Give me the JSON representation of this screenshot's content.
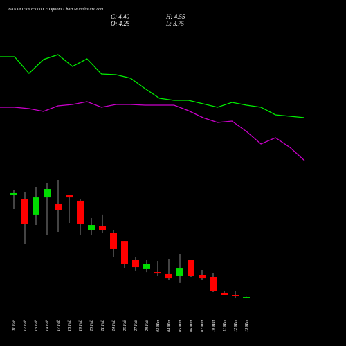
{
  "chart_data": {
    "type": "candlestick",
    "title": "BANKNIFTY 65000 CE Options Chart Munafasutra.com",
    "ohlc_labels": {
      "close": "C: 4.40",
      "open": "O: 4.25",
      "high": "H: 4.55",
      "low": "L: 3.75"
    },
    "categories": [
      "11 Feb",
      "12 Feb",
      "13 Feb",
      "14 Feb",
      "17 Feb",
      "18 Feb",
      "19 Feb",
      "20 Feb",
      "21 Feb",
      "24 Feb",
      "25 Feb",
      "27 Feb",
      "28 Feb",
      "03 Mar",
      "04 Mar",
      "05 Mar",
      "06 Mar",
      "07 Mar",
      "10 Mar",
      "11 Mar",
      "12 Mar",
      "13 Mar"
    ],
    "open": [
      86.1,
      82.8,
      70.6,
      84.4,
      78.9,
      86.1,
      81.7,
      57.8,
      61.1,
      56.1,
      49.4,
      34.4,
      26.7,
      24.4,
      22.8,
      21.1,
      34.4,
      21.7,
      20,
      7.8,
      6.1,
      4.25
    ],
    "high": [
      90,
      88.9,
      92.8,
      95.6,
      98.3,
      86.1,
      82.8,
      67.8,
      70.6,
      57.8,
      49.4,
      36.1,
      34.4,
      33.3,
      35,
      38.9,
      34.4,
      26.1,
      23.3,
      9.4,
      8.9,
      4.55
    ],
    "low": [
      75,
      47.2,
      62.2,
      53.9,
      56.7,
      63.9,
      53.9,
      53.9,
      56.1,
      36.1,
      27.8,
      25,
      24.4,
      21.1,
      17.8,
      15.6,
      20,
      17.8,
      8.3,
      5.6,
      3.3,
      3.75
    ],
    "close": [
      87.8,
      63.3,
      84.4,
      91.1,
      73.9,
      84.4,
      63.3,
      62.2,
      57.8,
      42.8,
      30.6,
      28.3,
      30.6,
      23.3,
      19.4,
      27.2,
      21.1,
      19.4,
      8.9,
      6.1,
      5,
      4.4
    ],
    "up_color": "#00dd00",
    "down_color": "#ff0000",
    "ylim": [
      0,
      100
    ],
    "y2lim": [
      0,
      100
    ],
    "series": [
      {
        "color": "#00ee00",
        "axis": "y2",
        "values": [
          83.6,
          83.6,
          78.8,
          82.8,
          84.2,
          80.8,
          83,
          78.6,
          78.4,
          77.4,
          74.4,
          71.6,
          71,
          71,
          70,
          69,
          70.4,
          69.6,
          69,
          66.8,
          66.4,
          66
        ]
      },
      {
        "color": "#cc00cc",
        "axis": "y2",
        "values": [
          69,
          69,
          68.6,
          67.8,
          69.4,
          69.8,
          70.6,
          69,
          69.8,
          69.8,
          69.6,
          69.6,
          69.6,
          68,
          66,
          64.6,
          65,
          62,
          58.4,
          60.2,
          57.4,
          53.6
        ]
      }
    ]
  }
}
